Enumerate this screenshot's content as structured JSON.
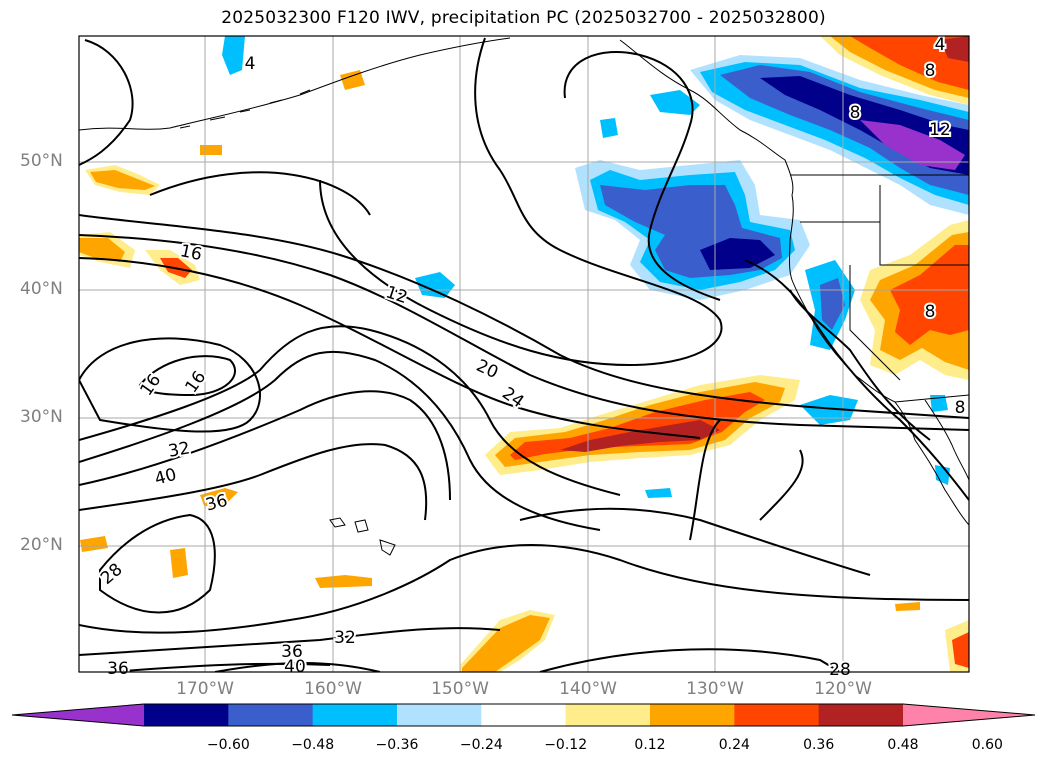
{
  "title": "2025032300 F120 IWV, precipitation PC (2025032700 - 2025032800)",
  "lat_labels": [
    "50°N",
    "40°N",
    "30°N",
    "20°N"
  ],
  "lon_labels": [
    "170°W",
    "160°W",
    "150°W",
    "140°W",
    "130°W",
    "120°W"
  ],
  "colorbar": {
    "ticks": [
      "−0.60",
      "−0.48",
      "−0.36",
      "−0.24",
      "−0.12",
      "0.12",
      "0.24",
      "0.36",
      "0.48",
      "0.60"
    ],
    "colors": [
      "#9932cc",
      "#00008b",
      "#3a5fcd",
      "#00bfff",
      "#b0e2ff",
      "#ffffff",
      "#ffec8b",
      "#ffa500",
      "#ff4500",
      "#b22222",
      "#ff82ab"
    ]
  },
  "contour_labels": [
    "4",
    "4",
    "8",
    "12",
    "12",
    "16",
    "16",
    "16",
    "20",
    "24",
    "28",
    "28",
    "32",
    "32",
    "36",
    "36",
    "36",
    "40",
    "40",
    "8",
    "8",
    "8"
  ]
}
